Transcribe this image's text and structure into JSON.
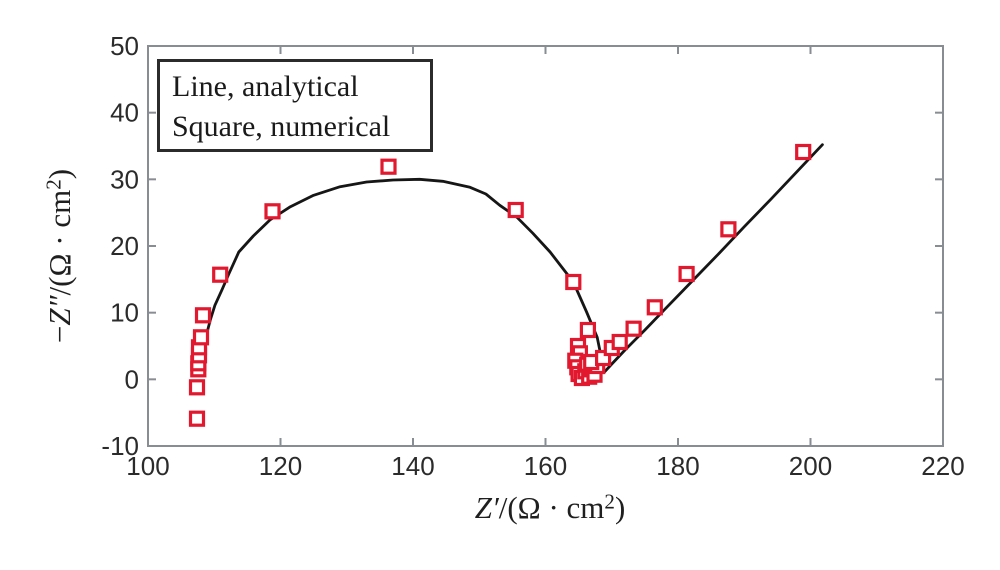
{
  "chart_data": {
    "type": "line+scatter",
    "description": "Nyquist electrochemical impedance plot: analytical solution (black line) vs numerical simulation (red open squares)",
    "xlabel": {
      "sym": "Z′",
      "mid": "/(Ω · cm",
      "sup": "2",
      "end": ")"
    },
    "ylabel": {
      "pre": "−",
      "sym": "Z″",
      "mid": "/(Ω · cm",
      "sup": "2",
      "end": ")"
    },
    "xlim": [
      100,
      220
    ],
    "ylim": [
      -10,
      50
    ],
    "xticks": {
      "values": [
        100,
        120,
        140,
        160,
        180,
        200,
        220
      ],
      "labels": [
        "100",
        "120",
        "140",
        "160",
        "180",
        "200",
        "220"
      ]
    },
    "yticks": {
      "values": [
        -10,
        0,
        10,
        20,
        30,
        40,
        50
      ],
      "labels": [
        "-10",
        "0",
        "10",
        "20",
        "30",
        "40",
        "50"
      ]
    },
    "grid": false,
    "box": true,
    "axis_color": "#878d92",
    "tick_label_color": "#2b2b2b",
    "legend": {
      "position": "top-left",
      "items": [
        {
          "label": "Line, analytical"
        },
        {
          "label": "Square, numerical"
        }
      ]
    },
    "series": [
      {
        "name": "analytical",
        "type": "line",
        "color": "#161616",
        "line_width": 2.8,
        "points": [
          [
            108.3,
            0.9
          ],
          [
            108.3,
            2.6
          ],
          [
            108.5,
            4.4
          ],
          [
            108.8,
            6.6
          ],
          [
            109.4,
            8.9
          ],
          [
            110.1,
            11.1
          ],
          [
            111.2,
            13.5
          ],
          [
            112.2,
            15.8
          ],
          [
            113.7,
            19.1
          ],
          [
            115.9,
            21.5
          ],
          [
            118.4,
            23.9
          ],
          [
            121.5,
            25.9
          ],
          [
            125.0,
            27.6
          ],
          [
            129.0,
            28.9
          ],
          [
            133.0,
            29.6
          ],
          [
            137.0,
            29.9
          ],
          [
            141.0,
            30.0
          ],
          [
            144.5,
            29.7
          ],
          [
            148.6,
            28.8
          ],
          [
            151.0,
            27.8
          ],
          [
            153.1,
            26.1
          ],
          [
            155.7,
            24.3
          ],
          [
            158.1,
            21.9
          ],
          [
            160.7,
            19.1
          ],
          [
            164.2,
            14.6
          ],
          [
            166.2,
            10.1
          ],
          [
            167.8,
            6.3
          ],
          [
            168.5,
            2.9
          ],
          [
            168.8,
            1.0
          ],
          [
            170.0,
            2.3
          ],
          [
            172.0,
            4.4
          ],
          [
            175.0,
            7.4
          ],
          [
            178.0,
            10.5
          ],
          [
            182.0,
            14.6
          ],
          [
            186.0,
            18.7
          ],
          [
            190.0,
            22.9
          ],
          [
            194.0,
            27.0
          ],
          [
            198.0,
            31.2
          ],
          [
            201.8,
            35.2
          ]
        ]
      },
      {
        "name": "numerical",
        "type": "scatter",
        "marker": "open-square",
        "color": "#e2182e",
        "marker_size": 13,
        "marker_stroke": 3.2,
        "points": [
          [
            107.4,
            -5.9
          ],
          [
            107.4,
            -1.2
          ],
          [
            107.6,
            1.5
          ],
          [
            107.6,
            2.4
          ],
          [
            107.7,
            3.6
          ],
          [
            107.7,
            4.8
          ],
          [
            108.0,
            6.3
          ],
          [
            108.3,
            9.6
          ],
          [
            110.9,
            15.7
          ],
          [
            118.8,
            25.2
          ],
          [
            136.3,
            31.9
          ],
          [
            155.5,
            25.4
          ],
          [
            164.2,
            14.6
          ],
          [
            166.4,
            7.4
          ],
          [
            164.9,
            5.0
          ],
          [
            165.2,
            3.9
          ],
          [
            164.5,
            2.8
          ],
          [
            164.8,
            1.8
          ],
          [
            165.0,
            0.8
          ],
          [
            165.5,
            0.2
          ],
          [
            166.0,
            1.2
          ],
          [
            166.3,
            2.2
          ],
          [
            166.6,
            0.4
          ],
          [
            167.0,
            1.5
          ],
          [
            167.4,
            0.7
          ],
          [
            167.8,
            2.0
          ],
          [
            166.9,
            2.6
          ],
          [
            168.7,
            3.2
          ],
          [
            170.0,
            4.7
          ],
          [
            171.2,
            5.6
          ],
          [
            173.3,
            7.6
          ],
          [
            176.5,
            10.8
          ],
          [
            181.3,
            15.8
          ],
          [
            187.6,
            22.5
          ],
          [
            198.9,
            34.1
          ]
        ]
      }
    ]
  }
}
